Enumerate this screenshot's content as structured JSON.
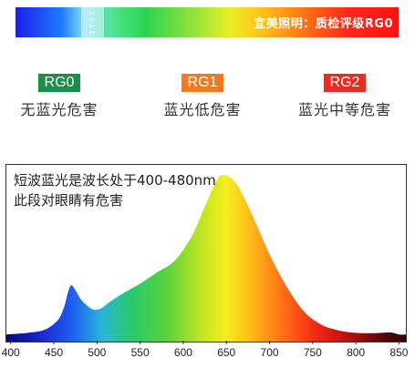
{
  "header_bar": {
    "text": "宜美照明：质检评级RG0",
    "arrows": "←\n←\n←\n←"
  },
  "grades": [
    {
      "badge": "RG0",
      "desc": "无蓝光危害",
      "color": "#1b8f4a"
    },
    {
      "badge": "RG1",
      "desc": "蓝光低危害",
      "color": "#f47920"
    },
    {
      "badge": "RG2",
      "desc": "蓝光中等危害",
      "color": "#ee2a24"
    }
  ],
  "chart_data": {
    "type": "area",
    "title": "",
    "xlabel": "",
    "ylabel": "",
    "annotation_line1": "短波蓝光是波长处于400-480nm",
    "annotation_line2": "此段对眼睛有危害",
    "xlim": [
      395,
      858
    ],
    "ylim": [
      0,
      1.0
    ],
    "x_ticks": [
      "400",
      "450",
      "500",
      "550",
      "600",
      "650",
      "700",
      "750",
      "800",
      "850"
    ],
    "x": [
      395,
      420,
      440,
      455,
      462,
      466,
      470,
      475,
      482,
      490,
      497,
      505,
      515,
      530,
      550,
      570,
      590,
      610,
      625,
      640,
      650,
      660,
      670,
      685,
      700,
      720,
      740,
      760,
      780,
      800,
      820,
      840,
      850,
      858
    ],
    "y": [
      0.01,
      0.02,
      0.04,
      0.1,
      0.18,
      0.26,
      0.31,
      0.28,
      0.22,
      0.18,
      0.16,
      0.17,
      0.21,
      0.26,
      0.32,
      0.39,
      0.46,
      0.61,
      0.79,
      0.96,
      0.98,
      0.94,
      0.85,
      0.68,
      0.5,
      0.3,
      0.15,
      0.07,
      0.035,
      0.02,
      0.018,
      0.022,
      0.01,
      0.01
    ]
  }
}
